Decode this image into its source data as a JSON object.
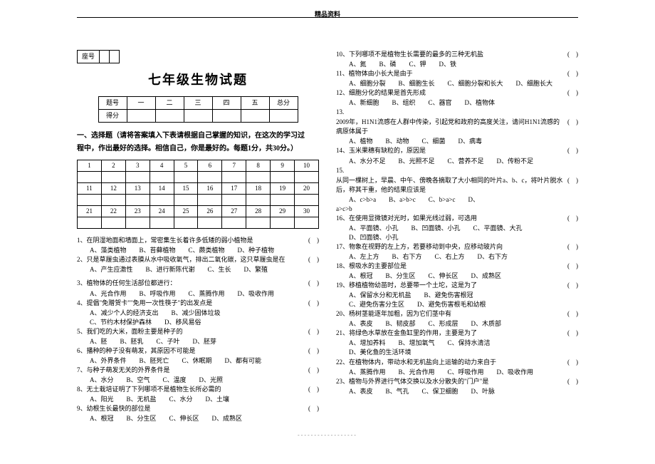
{
  "top_label": "精品资料",
  "seat_label": "座号",
  "title": "七年级生物试题",
  "score_table": {
    "row1": [
      "题号",
      "一",
      "二",
      "三",
      "四",
      "五",
      "总分"
    ],
    "row2": [
      "得分",
      "",
      "",
      "",
      "",
      "",
      ""
    ]
  },
  "section1_line1": "一、选择题（请将答案填入下表请根据自己掌握的知识，在这次的学习过",
  "section1_line2": "程中，作出最好的选择。相信自己，你是最好的。每题1分，共30分。）",
  "answer_nums_r1": [
    "1",
    "2",
    "3",
    "4",
    "5",
    "6",
    "7",
    "8",
    "9",
    "10"
  ],
  "answer_nums_r2": [
    "11",
    "12",
    "13",
    "14",
    "15",
    "16",
    "17",
    "18",
    "19",
    "20"
  ],
  "answer_nums_r3": [
    "21",
    "22",
    "23",
    "24",
    "25",
    "26",
    "27",
    "28",
    "29",
    "30"
  ],
  "left_questions": [
    {
      "stem": "1、在阴湿地面和墙面上，常密集生长着许多低矮的弱小植物是",
      "paren": "(　)",
      "opts": [
        "A、藻类植物",
        "B、苔藓植物",
        "C、蕨类植物",
        "D、种子植物"
      ]
    },
    {
      "stem": "2、只是草履虫通过表膜从水中吸收氧气，排出二氧化碳，这只草履虫是在",
      "paren": "(　)",
      "opts": [
        "A、产生应激性",
        "B、进行新陈代谢",
        "C、生长",
        "D、繁殖"
      ]
    },
    {
      "stem": "3、植物体的任何生活部位都进行：",
      "paren": "(　)",
      "opts": [
        "A、光合作用",
        "B、呼吸作用",
        "C、蒸腾作用",
        "D、吸收作用"
      ],
      "spacer": true
    },
    {
      "stem": "4、提倡\"免赠贺卡\"\"免用一次性筷子\"的出发点是",
      "paren": "(　)",
      "opts": [
        "A、减少个人的经济支出",
        "B、减少固体垃圾"
      ],
      "opts2": [
        "C、节约木材保护森林",
        "D、移风易俗"
      ]
    },
    {
      "stem": "5、我们吃的大米，面粉主要是种子的",
      "paren": "(　)",
      "opts": [
        "A、胚",
        "B、胚乳",
        "C、子叶",
        "D、胚芽"
      ]
    },
    {
      "stem": "6、播种的种子没有萌发，其原因不可能是",
      "paren": "(　)",
      "opts": [
        "A、外界条件",
        "B、胚死亡",
        "C、休眠期",
        "D、都有可能"
      ]
    },
    {
      "stem": "7、与种子萌发无关的外界条件是",
      "paren": "(　)",
      "opts": [
        "A、水分",
        "B、空气",
        "C、温度",
        "D、光照"
      ]
    },
    {
      "stem": "8、无土栽培证明了下列哪项不是植物生长所必需的",
      "paren": "(　)",
      "opts": [
        "A、阳光",
        "B、无机盐",
        "C、水分",
        "D、土壤"
      ]
    },
    {
      "stem": "9、幼根生长最快的部位是",
      "paren": "(　)",
      "opts": [
        "A、根冠",
        "B、分生区",
        "C、伸长区",
        "D、成熟区"
      ]
    }
  ],
  "right_questions": [
    {
      "stem": "10、下列哪项不是植物生长需要的最多的三种无机盐",
      "paren": "(　)",
      "opts": [
        "A、氮",
        "B、磷",
        "C、钾",
        "D、铁"
      ]
    },
    {
      "stem": "11、植物体由小长大是由于",
      "paren": "(　)",
      "opts": [
        "A、细胞分裂",
        "B、细胞生长",
        "C、细胞分裂和长大",
        "D、细胞长大"
      ]
    },
    {
      "stem": "12、细胞分化的结果是首先形成",
      "paren": "(　)",
      "opts": [
        "A、新细胞",
        "B、组织",
        "C、器官",
        "D、植物体"
      ]
    },
    {
      "stem": "13.",
      "paren": "",
      "opts": []
    },
    {
      "stem": "2009年，H1N1流感在人群中传染，引起党和政府的高度关注，请问H1N1流感的病原体属于",
      "paren": "(　)",
      "opts": [
        "A、植物",
        "B、动物",
        "C、细菌",
        "D、病毒"
      ]
    },
    {
      "stem": "14、玉米果穗有缺粒的，原因是",
      "paren": "(　)",
      "opts": [
        "A、水分不足",
        "B、光照不足",
        "C、营养不足",
        "D、传粉不足"
      ]
    },
    {
      "stem": "15.",
      "paren": "",
      "opts": []
    },
    {
      "stem": "从同一棵树上，早晨、中午、傍晚各摘取了大小相同的叶片a、b、c，将叶片脱水后，称其干重，他的结果应该是",
      "paren": "(　)",
      "opts": [
        "A、c>b>a",
        "B、a>b>c",
        "C、b>a>c",
        "D、"
      ],
      "extra": "a>c>b"
    },
    {
      "stem": "16、在使用显微镜对光时，如果光线过弱，可选用",
      "paren": "(　)",
      "opts": [
        "A、平面镜、小孔",
        "B、凹面镜、小孔",
        "C、平面镜、大孔",
        "D、凹面镜、小孔"
      ]
    },
    {
      "stem": "17、物象在视野的左上方，若要移动到中央，应移动玻片向",
      "paren": "(　)",
      "opts": [
        "A、左上方",
        "B、右下方",
        "C、右上方",
        "D、右下方"
      ]
    },
    {
      "stem": "18、根吸水的主要部位是",
      "paren": "(　)",
      "opts": [
        "A、根冠",
        "B、分生区",
        "C、伸长区",
        "D、成熟区"
      ]
    },
    {
      "stem": "19、移植植物幼苗时，总要带一个土坨，这是为了",
      "paren": "(　)",
      "opts": [
        "A、保留水分和无机盐",
        "B、避免伤害根冠"
      ],
      "opts2": [
        "C、避免伤害分生区",
        "D、避免伤害根毛和幼根"
      ]
    },
    {
      "stem": "20、杨树茎能逐年加粗，因为它们茎中有",
      "paren": "(　)",
      "opts": [
        "A、表皮",
        "B、韧皮部",
        "C、形成层",
        "D、木质部"
      ]
    },
    {
      "stem": "21、将绿色水草放在金鱼缸里的作用，主要是为了",
      "paren": "(　)",
      "opts": [
        "A、增加养料",
        "B、增加氧气",
        "C、保持水清洁",
        "D、美化鱼的生活环境"
      ]
    },
    {
      "stem": "22、在植物体内，带动水和无机盐向上运输的动力来自于",
      "paren": "(　)",
      "opts": [
        "A、蒸腾作用",
        "B、光合作用",
        "C、呼吸作用",
        "D、吸收作用"
      ]
    },
    {
      "stem": "23、植物与外界进行气体交换以及水分散失的\"门户\"是",
      "paren": "(　)",
      "opts": [
        "A、表皮",
        "B、气孔",
        "C、保卫细胞",
        "D、叶脉"
      ]
    }
  ],
  "colors": {
    "text": "#000000",
    "bg": "#ffffff",
    "dash": "#888888"
  }
}
